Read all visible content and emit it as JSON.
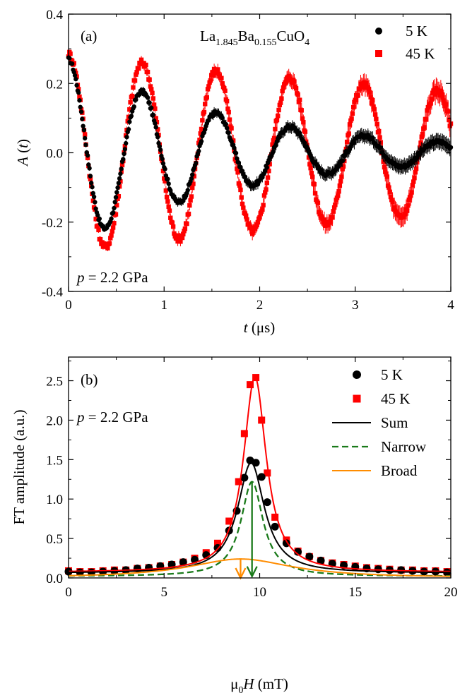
{
  "chart_data": [
    {
      "panel": "(a)",
      "type": "line",
      "title": "",
      "annotation_compound": {
        "base": "La",
        "sub1": "1.845",
        "mid1": "Ba",
        "sub2": "0.155",
        "mid2": "CuO",
        "sub3": "4"
      },
      "annotation_pressure": {
        "italic": "p",
        "rest": " = 2.2 GPa"
      },
      "xlabel": {
        "italic": "t",
        "rest": " (μs)"
      },
      "ylabel": {
        "italic": "A",
        "rest": " (",
        "italic2": "t",
        "rest2": ")"
      },
      "xlim": [
        0,
        4
      ],
      "ylim": [
        -0.4,
        0.4
      ],
      "xticks": [
        "0",
        "1",
        "2",
        "3",
        "4"
      ],
      "yticks": [
        "-0.4",
        "-0.2",
        "0.0",
        "0.2",
        "0.4"
      ],
      "legend_position": "top-right",
      "series": [
        {
          "name": "5 K",
          "color": "#000000",
          "marker": "circle",
          "model": {
            "a0": 0.27,
            "decay_rate": 0.55,
            "frequency_MHz": 1.29,
            "noise": 0.012
          },
          "extrema": [
            {
              "x": 0.0,
              "y": 0.27
            },
            {
              "x": 0.39,
              "y": -0.26
            },
            {
              "x": 0.78,
              "y": 0.22
            },
            {
              "x": 1.16,
              "y": -0.18
            },
            {
              "x": 1.55,
              "y": 0.16
            },
            {
              "x": 1.93,
              "y": -0.14
            },
            {
              "x": 2.32,
              "y": 0.12
            },
            {
              "x": 2.71,
              "y": -0.1
            },
            {
              "x": 3.1,
              "y": 0.1
            },
            {
              "x": 3.48,
              "y": -0.07
            },
            {
              "x": 3.87,
              "y": 0.07
            }
          ]
        },
        {
          "name": "45 K",
          "color": "#ff0000",
          "marker": "square",
          "model": {
            "a0": 0.285,
            "decay_rate": 0.12,
            "frequency_MHz": 1.295,
            "noise": 0.02
          },
          "extrema": [
            {
              "x": 0.0,
              "y": 0.28
            },
            {
              "x": 0.39,
              "y": -0.28
            },
            {
              "x": 0.78,
              "y": 0.27
            },
            {
              "x": 1.16,
              "y": -0.27
            },
            {
              "x": 1.55,
              "y": 0.25
            },
            {
              "x": 1.93,
              "y": -0.25
            },
            {
              "x": 2.32,
              "y": 0.24
            },
            {
              "x": 2.71,
              "y": -0.23
            },
            {
              "x": 3.1,
              "y": 0.22
            },
            {
              "x": 3.48,
              "y": -0.22
            },
            {
              "x": 3.87,
              "y": 0.21
            }
          ]
        }
      ]
    },
    {
      "panel": "(b)",
      "type": "line",
      "title": "",
      "annotation_pressure": {
        "italic": "p",
        "rest": " = 2.2 GPa"
      },
      "xlabel": {
        "pre": "μ",
        "sub": "0",
        "italic": "H",
        "rest": " (mT)"
      },
      "ylabel": "FT amplitude (a.u.)",
      "xlim": [
        0,
        20
      ],
      "ylim": [
        0,
        2.8
      ],
      "xticks": [
        "0",
        "5",
        "10",
        "15",
        "20"
      ],
      "yticks": [
        "0.0",
        "0.5",
        "1.0",
        "1.5",
        "2.0",
        "2.5"
      ],
      "legend_position": "top-right",
      "legend": [
        {
          "name": "5 K",
          "color": "#000000",
          "kind": "circle"
        },
        {
          "name": "45 K",
          "color": "#ff0000",
          "kind": "square"
        },
        {
          "name": "Sum",
          "color": "#000000",
          "kind": "line"
        },
        {
          "name": "Narrow",
          "color": "#1a7a1a",
          "kind": "dash"
        },
        {
          "name": "Broad",
          "color": "#ff8c00",
          "kind": "line"
        }
      ],
      "series": [
        {
          "name": "5 K",
          "color": "#000000",
          "marker": "circle",
          "kind": "points",
          "x": [
            0.0,
            0.6,
            1.2,
            1.8,
            2.4,
            3.0,
            3.6,
            4.2,
            4.8,
            5.4,
            6.0,
            6.6,
            7.2,
            7.8,
            8.4,
            8.8,
            9.2,
            9.5,
            9.8,
            10.1,
            10.4,
            10.8,
            11.4,
            12.0,
            12.6,
            13.2,
            13.8,
            14.4,
            15.0,
            15.6,
            16.2,
            16.8,
            17.4,
            18.0,
            18.6,
            19.2,
            19.8
          ],
          "y": [
            0.08,
            0.07,
            0.07,
            0.08,
            0.09,
            0.1,
            0.12,
            0.13,
            0.15,
            0.17,
            0.2,
            0.23,
            0.29,
            0.38,
            0.6,
            0.85,
            1.27,
            1.49,
            1.46,
            1.28,
            0.96,
            0.65,
            0.44,
            0.33,
            0.27,
            0.22,
            0.18,
            0.16,
            0.14,
            0.12,
            0.11,
            0.1,
            0.1,
            0.09,
            0.08,
            0.08,
            0.07
          ]
        },
        {
          "name": "45 K",
          "color": "#ff0000",
          "marker": "square",
          "kind": "points",
          "x": [
            0.0,
            0.6,
            1.2,
            1.8,
            2.4,
            3.0,
            3.6,
            4.2,
            4.8,
            5.4,
            6.0,
            6.6,
            7.2,
            7.8,
            8.4,
            8.9,
            9.2,
            9.5,
            9.8,
            10.1,
            10.4,
            10.8,
            11.4,
            12.0,
            12.6,
            13.2,
            13.8,
            14.4,
            15.0,
            15.6,
            16.2,
            16.8,
            17.4,
            18.0,
            18.6,
            19.2,
            19.8
          ],
          "y": [
            0.09,
            0.08,
            0.08,
            0.09,
            0.1,
            0.1,
            0.12,
            0.13,
            0.15,
            0.17,
            0.2,
            0.25,
            0.32,
            0.44,
            0.72,
            1.22,
            1.83,
            2.45,
            2.54,
            2.0,
            1.33,
            0.77,
            0.48,
            0.34,
            0.27,
            0.22,
            0.19,
            0.17,
            0.15,
            0.13,
            0.12,
            0.11,
            0.1,
            0.1,
            0.09,
            0.09,
            0.08
          ]
        },
        {
          "name": "45 K fit",
          "color": "#ff0000",
          "kind": "curve",
          "center": 9.75,
          "peak": 2.55,
          "gamma": 0.72,
          "base": 0.07
        },
        {
          "name": "Sum",
          "color": "#000000",
          "kind": "curve",
          "center": 9.55,
          "peak": 1.46,
          "gamma": 0.85,
          "base": 0.06
        },
        {
          "name": "Narrow",
          "color": "#1a7a1a",
          "kind": "curve-dash",
          "center": 9.6,
          "peak": 1.22,
          "gamma": 0.7,
          "base": 0.02
        },
        {
          "name": "Broad",
          "color": "#ff8c00",
          "kind": "curve",
          "center": 9.0,
          "peak": 0.24,
          "gamma": 3.3,
          "base": 0.0
        }
      ],
      "arrows": [
        {
          "name": "Narrow peak",
          "color": "#1a7a1a",
          "x": 9.6,
          "y_from": 1.22,
          "y_to": 0.02
        },
        {
          "name": "Broad peak",
          "color": "#ff8c00",
          "x": 9.0,
          "y_from": 0.24,
          "y_to": 0.0
        }
      ]
    }
  ]
}
